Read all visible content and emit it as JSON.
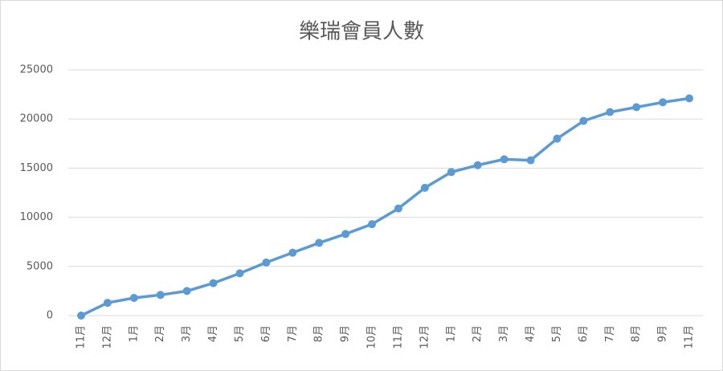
{
  "chart_data": {
    "type": "line",
    "title": "樂瑞會員人數",
    "categories": [
      "11月",
      "12月",
      "1月",
      "2月",
      "3月",
      "4月",
      "5月",
      "6月",
      "7月",
      "8月",
      "9月",
      "10月",
      "11月",
      "12月",
      "1月",
      "2月",
      "3月",
      "4月",
      "5月",
      "6月",
      "7月",
      "8月",
      "9月",
      "11月"
    ],
    "series": [
      {
        "name": "樂瑞會員人數",
        "color": "#5b9bd5",
        "values": [
          0,
          1300,
          1800,
          2100,
          2500,
          3300,
          4300,
          5400,
          6400,
          7400,
          8300,
          9300,
          10900,
          13000,
          14600,
          15300,
          15900,
          15800,
          18000,
          19800,
          20700,
          21200,
          21700,
          22100
        ]
      }
    ],
    "ylim": [
      0,
      25000
    ],
    "yticks": [
      0,
      5000,
      10000,
      15000,
      20000,
      25000
    ],
    "grid": true
  }
}
